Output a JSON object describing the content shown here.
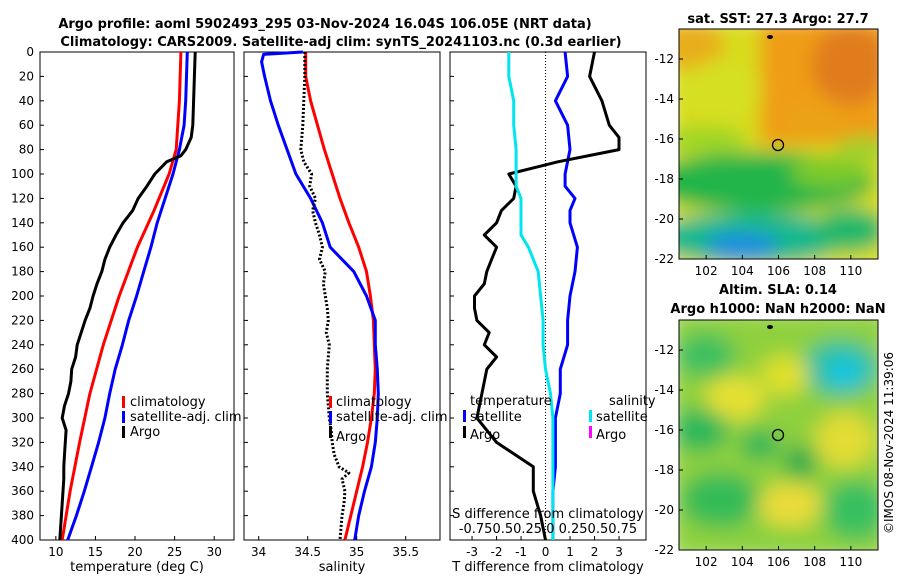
{
  "title": {
    "line1": "Argo profile: aoml 5902493_295 03-Nov-2024 16.04S 106.05E (NRT data)",
    "line2": "Climatology: CARS2009. Satellite-adj clim: synTS_20241103.nc (0.3d earlier)"
  },
  "timestamp": "©IMOS 08-Nov-2024 11:39:06",
  "colors": {
    "climatology": "#ff0000",
    "satellite": "#0000ff",
    "argo": "#000000",
    "sal_sat": "#00e5f0",
    "magenta": "#ff00ff"
  },
  "depth_ticks": [
    0,
    20,
    40,
    60,
    80,
    100,
    120,
    140,
    160,
    180,
    200,
    220,
    240,
    260,
    280,
    300,
    320,
    340,
    360,
    380,
    400
  ],
  "chart_data": [
    {
      "type": "line",
      "name": "temperature",
      "xlabel": "temperature (deg C)",
      "xlim": [
        8,
        32.5
      ],
      "ylim": [
        0,
        400
      ],
      "xticks": [
        10,
        15,
        20,
        25,
        30
      ],
      "xtick_labels": [
        "10",
        "15",
        "20",
        "25",
        "30"
      ],
      "legend": [
        "climatology",
        "satellite-adj. clim",
        "Argo"
      ],
      "series": [
        {
          "name": "climatology",
          "color": "#ff0000",
          "depth": [
            0,
            40,
            80,
            100,
            130,
            160,
            200,
            240,
            280,
            320,
            360,
            400
          ],
          "values": [
            25.8,
            25.6,
            25.2,
            24.3,
            22.4,
            20.3,
            18.0,
            16.0,
            14.3,
            13.0,
            11.8,
            10.8
          ]
        },
        {
          "name": "satellite-adj. clim",
          "color": "#0000ff",
          "depth": [
            0,
            20,
            40,
            60,
            80,
            100,
            120,
            140,
            160,
            180,
            200,
            220,
            240,
            260,
            280,
            300,
            320,
            340,
            360,
            380,
            400
          ],
          "values": [
            26.6,
            26.5,
            26.4,
            26.2,
            25.6,
            24.8,
            23.8,
            22.8,
            22.0,
            21.1,
            20.2,
            19.2,
            18.4,
            17.5,
            16.8,
            16.2,
            15.4,
            14.5,
            13.6,
            12.6,
            11.5
          ]
        },
        {
          "name": "Argo",
          "color": "#000000",
          "depth": [
            0,
            20,
            40,
            60,
            70,
            80,
            85,
            90,
            100,
            110,
            120,
            130,
            140,
            150,
            160,
            170,
            180,
            190,
            200,
            210,
            220,
            230,
            240,
            250,
            260,
            270,
            280,
            290,
            300,
            310,
            320,
            330,
            340,
            350,
            360,
            370,
            380,
            390,
            400
          ],
          "values": [
            27.6,
            27.5,
            27.4,
            27.3,
            27.1,
            26.4,
            25.8,
            24.0,
            22.5,
            21.5,
            20.4,
            19.7,
            18.5,
            17.6,
            16.8,
            16.2,
            15.8,
            15.2,
            14.7,
            14.3,
            13.7,
            13.2,
            12.7,
            12.5,
            12.0,
            11.9,
            11.6,
            11.1,
            10.8,
            11.3,
            11.2,
            11.1,
            11.0,
            11.0,
            10.9,
            10.8,
            10.7,
            10.6,
            10.5
          ]
        }
      ]
    },
    {
      "type": "line",
      "name": "salinity",
      "xlabel": "salinity",
      "xlim": [
        33.85,
        35.85
      ],
      "ylim": [
        0,
        400
      ],
      "xticks": [
        34,
        34.5,
        35,
        35.5
      ],
      "xtick_labels": [
        "34",
        "34.5",
        "35",
        "35.5"
      ],
      "legend": [
        "climatology",
        "satellite-adj. clim",
        "Argo"
      ],
      "series": [
        {
          "name": "climatology",
          "color": "#ff0000",
          "depth": [
            0,
            20,
            40,
            60,
            80,
            100,
            120,
            140,
            160,
            180,
            200,
            220,
            240,
            260,
            280,
            300,
            320,
            340,
            360,
            380,
            400
          ],
          "values": [
            34.48,
            34.48,
            34.53,
            34.6,
            34.67,
            34.75,
            34.83,
            34.92,
            35.02,
            35.1,
            35.14,
            35.17,
            35.18,
            35.19,
            35.18,
            35.15,
            35.11,
            35.06,
            35.0,
            34.94,
            34.88
          ]
        },
        {
          "name": "satellite-adj. clim",
          "color": "#0000ff",
          "depth": [
            0,
            2,
            8,
            20,
            40,
            60,
            80,
            100,
            120,
            140,
            160,
            180,
            200,
            220,
            240,
            260,
            280,
            300,
            320,
            340,
            360,
            380,
            400
          ],
          "values": [
            34.45,
            34.05,
            34.03,
            34.06,
            34.12,
            34.2,
            34.29,
            34.38,
            34.53,
            34.65,
            34.73,
            34.97,
            35.1,
            35.19,
            35.19,
            35.21,
            35.22,
            35.21,
            35.19,
            35.15,
            35.08,
            35.02,
            34.98
          ]
        },
        {
          "name": "Argo",
          "color": "#000000",
          "dashed": true,
          "depth": [
            0,
            20,
            40,
            60,
            80,
            90,
            100,
            110,
            120,
            130,
            140,
            150,
            160,
            170,
            180,
            190,
            200,
            210,
            220,
            230,
            240,
            260,
            280,
            290,
            300,
            310,
            320,
            330,
            340,
            345,
            350,
            360,
            370,
            380,
            390,
            400
          ],
          "values": [
            34.47,
            34.47,
            34.46,
            34.45,
            34.43,
            34.46,
            34.54,
            34.52,
            34.58,
            34.55,
            34.58,
            34.62,
            34.65,
            34.62,
            34.68,
            34.66,
            34.68,
            34.7,
            34.71,
            34.69,
            34.72,
            34.7,
            34.7,
            34.71,
            34.72,
            34.74,
            34.75,
            34.77,
            34.82,
            34.92,
            34.85,
            34.88,
            34.87,
            34.85,
            34.84,
            34.83
          ]
        }
      ]
    },
    {
      "type": "line",
      "name": "differences",
      "xlabel": "T difference from climatology",
      "xlabel_top": "S difference from climatology",
      "xlim": [
        -3.9,
        4.1
      ],
      "ylim": [
        0,
        400
      ],
      "xticks": [
        -3,
        -2,
        -1,
        0,
        1,
        2,
        3
      ],
      "xtick_labels": [
        "-3",
        "-2",
        "-1",
        "0",
        "1",
        "2",
        "3"
      ],
      "s_ticks": [
        -0.75,
        -0.5,
        -0.25,
        0,
        0.25,
        0.5,
        0.75
      ],
      "s_tick_text": "-0.750.50.25 0 0.250.50.75",
      "legend": {
        "temperature_title": "temperature",
        "salinity_title": "salinity",
        "satellite": "satellite",
        "argo": "Argo"
      },
      "series": [
        {
          "name": "T satellite",
          "color": "#0000ff",
          "depth": [
            0,
            20,
            40,
            60,
            80,
            100,
            110,
            120,
            130,
            140,
            160,
            180,
            200,
            220,
            240,
            260,
            280,
            300,
            320,
            340,
            360,
            380,
            400
          ],
          "values": [
            0.8,
            0.9,
            0.4,
            0.9,
            1.0,
            0.8,
            0.8,
            1.2,
            1.0,
            1.0,
            1.3,
            1.2,
            1.0,
            0.9,
            0.9,
            0.6,
            0.6,
            0.4,
            0.4,
            0.4,
            0.3,
            0.3,
            0.3
          ]
        },
        {
          "name": "T Argo",
          "color": "#000000",
          "depth": [
            0,
            20,
            40,
            60,
            70,
            80,
            84,
            90,
            95,
            100,
            110,
            120,
            130,
            140,
            150,
            160,
            170,
            180,
            190,
            200,
            210,
            220,
            230,
            240,
            250,
            260,
            280,
            300,
            320,
            340,
            360,
            380,
            400
          ],
          "values": [
            2.0,
            1.8,
            2.3,
            2.6,
            3.0,
            3.0,
            2.0,
            0.5,
            -0.5,
            -1.5,
            -1.2,
            -1.3,
            -1.8,
            -2.0,
            -2.5,
            -2.0,
            -2.2,
            -2.4,
            -2.5,
            -2.9,
            -2.9,
            -2.8,
            -2.3,
            -2.5,
            -2.0,
            -2.4,
            -2.6,
            -2.8,
            -2.0,
            -0.5,
            -0.5,
            -0.2,
            0.0
          ]
        },
        {
          "name": "S satellite",
          "color": "#00e5f0",
          "depth": [
            0,
            20,
            40,
            60,
            80,
            100,
            110,
            120,
            140,
            150,
            160,
            170,
            180,
            200,
            220,
            240,
            260,
            280,
            300,
            320,
            340,
            360,
            380,
            400
          ],
          "values": [
            -1.5,
            -1.5,
            -1.3,
            -1.3,
            -1.2,
            -1.2,
            -1.2,
            -1.0,
            -1.0,
            -1.0,
            -0.7,
            -0.5,
            -0.3,
            -0.2,
            -0.1,
            -0.1,
            0.0,
            0.2,
            0.3,
            0.3,
            0.3,
            0.3,
            0.3,
            0.3
          ]
        }
      ]
    },
    {
      "type": "heatmap",
      "name": "sst_map",
      "title": "sat. SST: 27.3 Argo: 27.7",
      "xticks": [
        102,
        104,
        106,
        108,
        110
      ],
      "yticks": [
        -12,
        -14,
        -16,
        -18,
        -20,
        -22
      ],
      "xlim": [
        100.5,
        111.5
      ],
      "ylim": [
        -22,
        -10.5
      ],
      "marker": [
        106.05,
        -16.04
      ]
    },
    {
      "type": "heatmap",
      "name": "sla_map",
      "title_line1": "Altim. SLA: 0.14",
      "title_line2": "Argo h1000: NaN h2000: NaN",
      "xticks": [
        102,
        104,
        106,
        108,
        110
      ],
      "yticks": [
        -12,
        -14,
        -16,
        -18,
        -20,
        -22
      ],
      "xlim": [
        100.5,
        111.5
      ],
      "ylim": [
        -22,
        -10.5
      ],
      "marker": [
        106.05,
        -16.04
      ]
    }
  ]
}
